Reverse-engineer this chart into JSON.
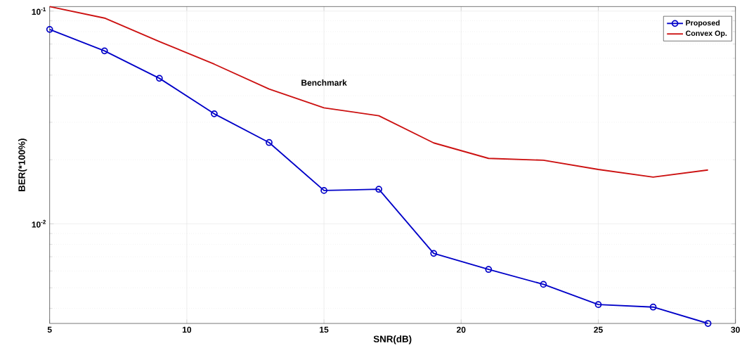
{
  "chart_data": {
    "type": "line",
    "xlabel": "SNR(dB)",
    "ylabel": "BER(*100%)",
    "x": [
      5,
      7,
      9,
      11,
      13,
      15,
      17,
      19,
      21,
      23,
      25,
      27,
      29
    ],
    "series": [
      {
        "name": "Proposed",
        "color": "#0000c8",
        "marker": "circle",
        "values": [
          0.082,
          0.065,
          0.0483,
          0.0329,
          0.0241,
          0.01434,
          0.01453,
          0.00726,
          0.0061,
          0.00519,
          0.00417,
          0.00406,
          0.0034
        ]
      },
      {
        "name": "Convex Op.",
        "color": "#cc1111",
        "marker": "none",
        "values": [
          0.105,
          0.0927,
          0.0719,
          0.0563,
          0.043,
          0.0351,
          0.0322,
          0.024,
          0.0203,
          0.0199,
          0.018,
          0.01657,
          0.0179
        ]
      }
    ],
    "annotations": [
      "Benchmark"
    ],
    "xlim": [
      5,
      30
    ],
    "ylim": [
      0.0034,
      0.105
    ],
    "xticks": [
      5,
      10,
      15,
      20,
      25,
      30
    ],
    "yticks": [
      {
        "value": 0.01,
        "label": "10$^{-2}$"
      },
      {
        "value": 0.1,
        "label": "10$^{-1}$"
      }
    ],
    "log": "y",
    "grid": true,
    "legend": "top right",
    "line_style": "solid"
  }
}
